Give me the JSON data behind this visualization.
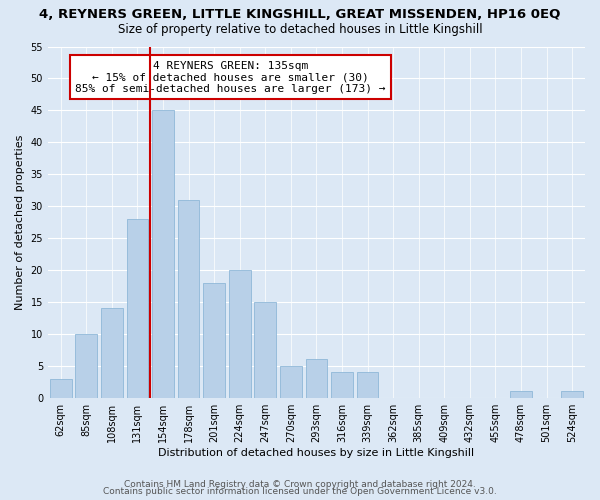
{
  "title": "4, REYNERS GREEN, LITTLE KINGSHILL, GREAT MISSENDEN, HP16 0EQ",
  "subtitle": "Size of property relative to detached houses in Little Kingshill",
  "xlabel": "Distribution of detached houses by size in Little Kingshill",
  "ylabel": "Number of detached properties",
  "bin_labels": [
    "62sqm",
    "85sqm",
    "108sqm",
    "131sqm",
    "154sqm",
    "178sqm",
    "201sqm",
    "224sqm",
    "247sqm",
    "270sqm",
    "293sqm",
    "316sqm",
    "339sqm",
    "362sqm",
    "385sqm",
    "409sqm",
    "432sqm",
    "455sqm",
    "478sqm",
    "501sqm",
    "524sqm"
  ],
  "bar_values": [
    3,
    10,
    14,
    28,
    45,
    31,
    18,
    20,
    15,
    5,
    6,
    4,
    4,
    0,
    0,
    0,
    0,
    0,
    1,
    0,
    1
  ],
  "bar_color": "#b8d0e8",
  "bar_edge_color": "#8fb8d8",
  "vline_x_index": 3,
  "vline_color": "#cc0000",
  "annotation_text": "4 REYNERS GREEN: 135sqm\n← 15% of detached houses are smaller (30)\n85% of semi-detached houses are larger (173) →",
  "annotation_box_color": "#ffffff",
  "annotation_box_edge": "#cc0000",
  "ylim": [
    0,
    55
  ],
  "yticks": [
    0,
    5,
    10,
    15,
    20,
    25,
    30,
    35,
    40,
    45,
    50,
    55
  ],
  "footer1": "Contains HM Land Registry data © Crown copyright and database right 2024.",
  "footer2": "Contains public sector information licensed under the Open Government Licence v3.0.",
  "bg_color": "#dce8f5",
  "plot_bg_color": "#dce8f5",
  "title_fontsize": 9.5,
  "subtitle_fontsize": 8.5,
  "label_fontsize": 8,
  "tick_fontsize": 7,
  "annotation_fontsize": 8,
  "footer_fontsize": 6.5
}
